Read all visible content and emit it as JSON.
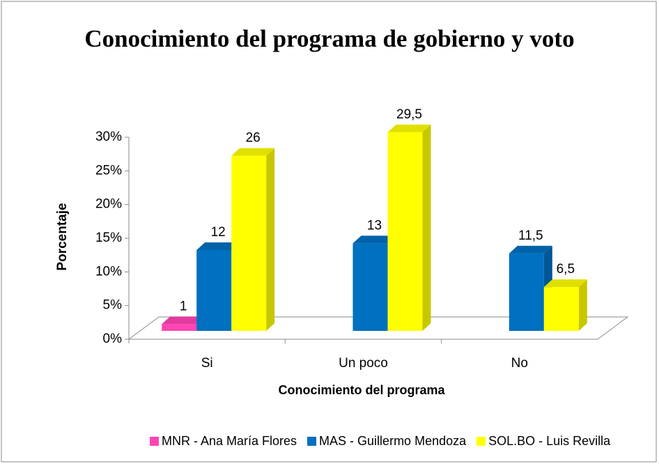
{
  "chart_data": {
    "type": "bar3d",
    "title": "Conocimiento del programa de gobierno y voto",
    "x_label": "Conocimiento del programa",
    "y_label": "Porcentaje",
    "categories": [
      "Si",
      "Un poco",
      "No"
    ],
    "series": [
      {
        "name": "MNR - Ana María Flores",
        "color": "#ff44b4",
        "values": [
          1,
          null,
          null
        ],
        "value_labels": [
          "1",
          null,
          null
        ]
      },
      {
        "name": "MAS - Guillermo Mendoza",
        "color": "#0070c0",
        "values": [
          12,
          13,
          11.5
        ],
        "value_labels": [
          "12",
          "13",
          "11,5"
        ]
      },
      {
        "name": "SOL.BO - Luis Revilla",
        "color": "#ffff00",
        "values": [
          26,
          29.5,
          6.5
        ],
        "value_labels": [
          "26",
          "29,5",
          "6,5"
        ]
      }
    ],
    "ylim": [
      0,
      30
    ],
    "yticks": [
      {
        "value": 0,
        "label": "0%"
      },
      {
        "value": 5,
        "label": "5%"
      },
      {
        "value": 10,
        "label": "10%"
      },
      {
        "value": 15,
        "label": "15%"
      },
      {
        "value": 20,
        "label": "20%"
      },
      {
        "value": 25,
        "label": "25%"
      },
      {
        "value": 30,
        "label": "30%"
      }
    ],
    "legend": "bottom"
  }
}
